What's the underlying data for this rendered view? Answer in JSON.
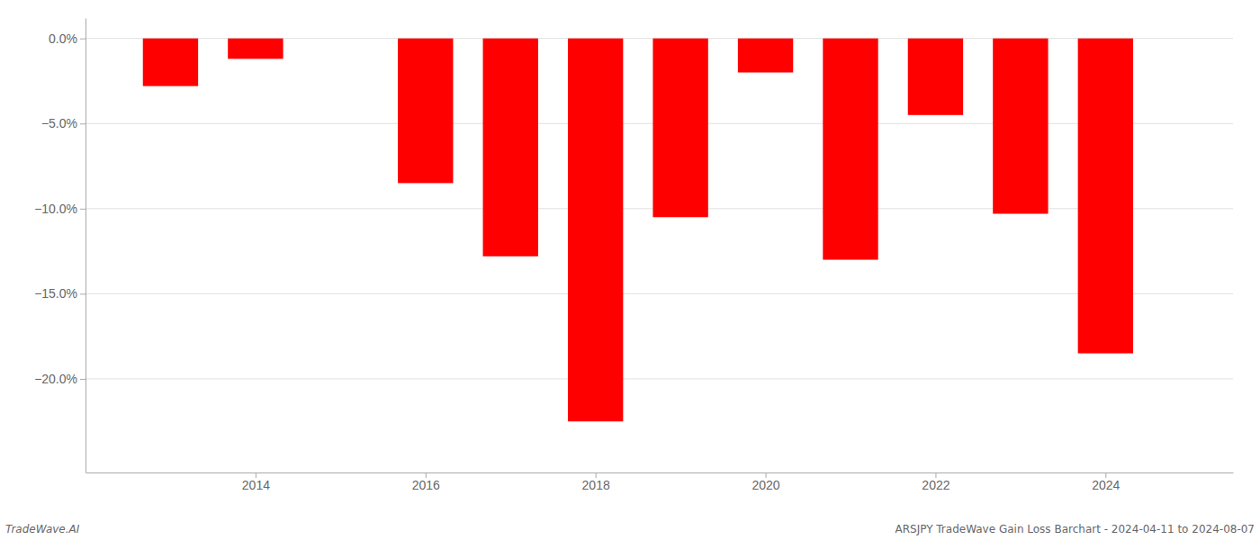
{
  "chart_data": {
    "type": "bar",
    "x": [
      2013,
      2014,
      2015,
      2016,
      2017,
      2018,
      2019,
      2020,
      2021,
      2022,
      2023,
      2024
    ],
    "values": [
      -2.8,
      -1.2,
      0.0,
      -8.5,
      -12.8,
      -22.5,
      -10.5,
      -2.0,
      -13.0,
      -4.5,
      -10.3,
      -18.5
    ],
    "color": "#ff0000",
    "xlim": [
      2012.0,
      2025.5
    ],
    "xticks": [
      2014,
      2016,
      2018,
      2020,
      2022,
      2024
    ],
    "ylim": [
      -25.5,
      1.2
    ],
    "yticks": [
      {
        "value": 0.0,
        "label": "0.0%"
      },
      {
        "value": -5.0,
        "label": "−5.0%"
      },
      {
        "value": -10.0,
        "label": "−10.0%"
      },
      {
        "value": -15.0,
        "label": "−15.0%"
      },
      {
        "value": -20.0,
        "label": "−20.0%"
      }
    ],
    "grid": true,
    "annotations": [
      "TradeWave.AI",
      "ARSJPY TradeWave Gain Loss Barchart - 2024-04-11 to 2024-08-07"
    ]
  }
}
